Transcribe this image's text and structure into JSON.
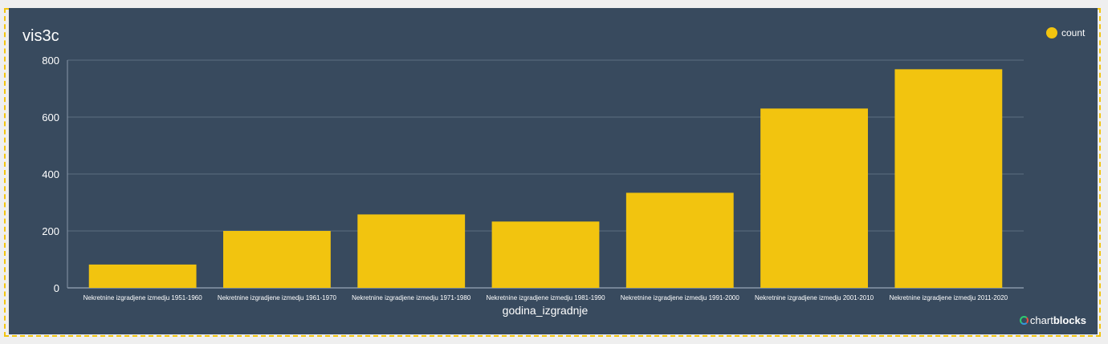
{
  "brand": {
    "prefix": "chart",
    "suffix": "blocks"
  },
  "chart_data": {
    "type": "bar",
    "title": "vis3c",
    "xlabel": "godina_izgradnje",
    "ylabel": "",
    "ylim": [
      0,
      800
    ],
    "yticks": [
      0,
      200,
      400,
      600,
      800
    ],
    "grid": true,
    "legend_position": "top-right",
    "categories": [
      "Nekretnine izgradjene izmedju 1951-1960",
      "Nekretnine izgradjene izmedju 1961-1970",
      "Nekretnine izgradjene izmedju 1971-1980",
      "Nekretnine izgradjene izmedju 1981-1990",
      "Nekretnine izgradjene izmedju 1991-2000",
      "Nekretnine izgradjene izmedju 2001-2010",
      "Nekretnine izgradjene izmedju 2011-2020"
    ],
    "series": [
      {
        "name": "count",
        "color": "#f2c40f",
        "values": [
          82,
          200,
          258,
          233,
          334,
          630,
          768
        ]
      }
    ]
  }
}
